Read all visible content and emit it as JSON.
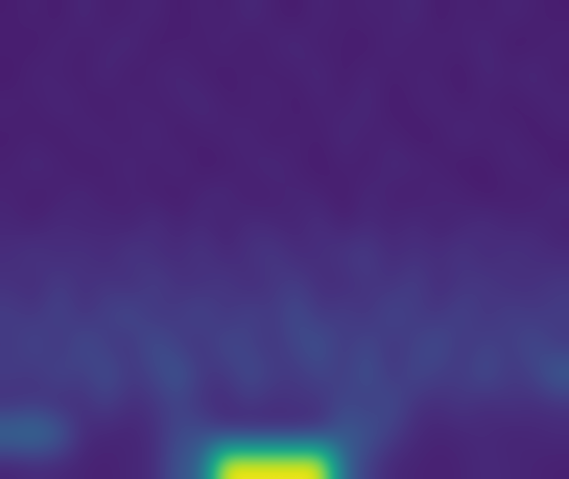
{
  "chart_data": {
    "type": "heatmap",
    "tick_labels": false,
    "zlim": [
      0,
      1
    ],
    "cells": [
      [
        0.08,
        0.1,
        0.07,
        0.12,
        0.08,
        0.09,
        0.11,
        0.07,
        0.1,
        0.08,
        0.12,
        0.09,
        0.07,
        0.11,
        0.08,
        0.1,
        0.09,
        0.12,
        0.07,
        0.1,
        0.08,
        0.11,
        0.09,
        0.08
      ],
      [
        0.09,
        0.07,
        0.11,
        0.08,
        0.1,
        0.12,
        0.07,
        0.09,
        0.08,
        0.11,
        0.07,
        0.1,
        0.12,
        0.08,
        0.09,
        0.07,
        0.11,
        0.08,
        0.1,
        0.09,
        0.12,
        0.07,
        0.08,
        0.1
      ],
      [
        0.07,
        0.11,
        0.09,
        0.08,
        0.12,
        0.07,
        0.1,
        0.11,
        0.09,
        0.07,
        0.1,
        0.08,
        0.09,
        0.12,
        0.07,
        0.11,
        0.08,
        0.1,
        0.09,
        0.07,
        0.11,
        0.1,
        0.12,
        0.08
      ],
      [
        0.1,
        0.08,
        0.12,
        0.09,
        0.07,
        0.11,
        0.08,
        0.1,
        0.12,
        0.09,
        0.08,
        0.11,
        0.07,
        0.1,
        0.09,
        0.12,
        0.07,
        0.09,
        0.11,
        0.08,
        0.1,
        0.07,
        0.09,
        0.11
      ],
      [
        0.08,
        0.09,
        0.07,
        0.11,
        0.1,
        0.08,
        0.12,
        0.07,
        0.09,
        0.1,
        0.11,
        0.07,
        0.1,
        0.08,
        0.12,
        0.09,
        0.1,
        0.07,
        0.08,
        0.12,
        0.09,
        0.11,
        0.07,
        0.09
      ],
      [
        0.09,
        0.12,
        0.1,
        0.07,
        0.09,
        0.11,
        0.08,
        0.12,
        0.07,
        0.08,
        0.1,
        0.12,
        0.09,
        0.07,
        0.1,
        0.08,
        0.12,
        0.11,
        0.09,
        0.07,
        0.08,
        0.1,
        0.11,
        0.07
      ],
      [
        0.1,
        0.08,
        0.09,
        0.12,
        0.08,
        0.1,
        0.09,
        0.07,
        0.11,
        0.12,
        0.08,
        0.09,
        0.11,
        0.1,
        0.07,
        0.12,
        0.09,
        0.08,
        0.11,
        0.1,
        0.07,
        0.09,
        0.08,
        0.12
      ],
      [
        0.11,
        0.09,
        0.13,
        0.1,
        0.12,
        0.09,
        0.14,
        0.1,
        0.12,
        0.09,
        0.13,
        0.11,
        0.1,
        0.14,
        0.09,
        0.12,
        0.1,
        0.13,
        0.09,
        0.11,
        0.14,
        0.1,
        0.12,
        0.09
      ],
      [
        0.13,
        0.16,
        0.12,
        0.15,
        0.11,
        0.17,
        0.13,
        0.12,
        0.16,
        0.11,
        0.14,
        0.17,
        0.12,
        0.13,
        0.16,
        0.18,
        0.12,
        0.14,
        0.13,
        0.16,
        0.11,
        0.15,
        0.13,
        0.12
      ],
      [
        0.14,
        0.12,
        0.18,
        0.13,
        0.16,
        0.12,
        0.19,
        0.14,
        0.13,
        0.17,
        0.12,
        0.15,
        0.18,
        0.13,
        0.12,
        0.16,
        0.14,
        0.19,
        0.12,
        0.15,
        0.17,
        0.13,
        0.14,
        0.16
      ],
      [
        0.18,
        0.15,
        0.21,
        0.14,
        0.19,
        0.23,
        0.15,
        0.17,
        0.22,
        0.14,
        0.2,
        0.16,
        0.24,
        0.15,
        0.19,
        0.14,
        0.22,
        0.17,
        0.15,
        0.21,
        0.14,
        0.19,
        0.16,
        0.18
      ],
      [
        0.16,
        0.22,
        0.14,
        0.24,
        0.17,
        0.15,
        0.25,
        0.18,
        0.14,
        0.23,
        0.19,
        0.15,
        0.21,
        0.26,
        0.16,
        0.22,
        0.15,
        0.19,
        0.24,
        0.15,
        0.2,
        0.17,
        0.23,
        0.16
      ],
      [
        0.18,
        0.15,
        0.22,
        0.17,
        0.25,
        0.16,
        0.2,
        0.28,
        0.17,
        0.15,
        0.24,
        0.18,
        0.16,
        0.21,
        0.17,
        0.26,
        0.15,
        0.22,
        0.18,
        0.17,
        0.24,
        0.16,
        0.19,
        0.3
      ],
      [
        0.13,
        0.16,
        0.12,
        0.14,
        0.18,
        0.13,
        0.15,
        0.2,
        0.14,
        0.12,
        0.16,
        0.13,
        0.15,
        0.14,
        0.22,
        0.17,
        0.24,
        0.14,
        0.13,
        0.16,
        0.12,
        0.15,
        0.13,
        0.14
      ],
      [
        0.36,
        0.38,
        0.3,
        0.12,
        0.11,
        0.1,
        0.13,
        0.22,
        0.24,
        0.14,
        0.12,
        0.13,
        0.12,
        0.15,
        0.28,
        0.26,
        0.18,
        0.12,
        0.1,
        0.11,
        0.12,
        0.1,
        0.11,
        0.12
      ],
      [
        0.1,
        0.12,
        0.11,
        0.1,
        0.09,
        0.11,
        0.12,
        0.26,
        0.3,
        1.0,
        1.0,
        1.0,
        1.0,
        1.0,
        0.32,
        0.18,
        0.11,
        0.1,
        0.09,
        0.1,
        0.12,
        0.11,
        0.1,
        0.09
      ]
    ]
  }
}
